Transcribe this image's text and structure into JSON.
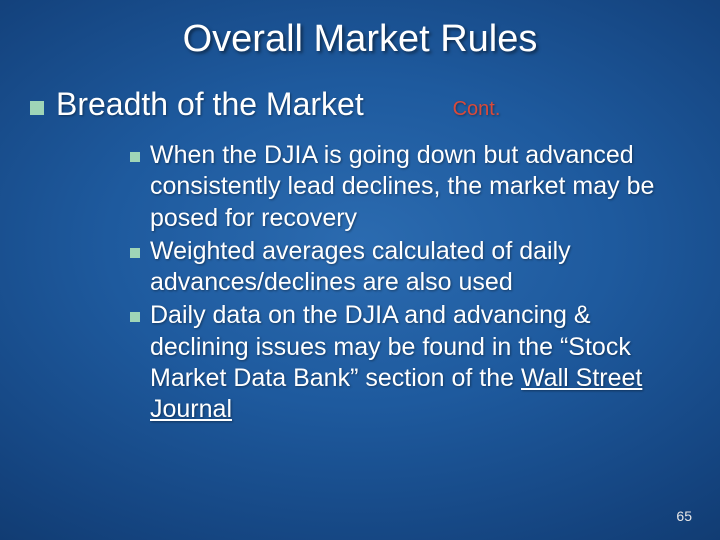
{
  "colors": {
    "bg_center": "#2b6bb0",
    "bg_edge": "#04193c",
    "bullet": "#9fd5b7",
    "text": "#ffffff",
    "cont": "#d94a3a"
  },
  "typography": {
    "title_fontsize": 38,
    "level1_fontsize": 32,
    "level2_fontsize": 25,
    "cont_fontsize": 20,
    "pagenum_fontsize": 14,
    "font_family": "Arial"
  },
  "title": "Overall Market Rules",
  "level1": {
    "text": "Breadth of the Market",
    "cont": "Cont."
  },
  "bullets": [
    {
      "text": " When the DJIA is going down but advanced consistently lead declines, the market may be posed for recovery"
    },
    {
      "text": "Weighted averages calculated of daily advances/declines are also used"
    },
    {
      "text": " Daily data on the DJIA and advancing & declining issues may be found in the “Stock Market Data Bank” section of the ",
      "underlined_suffix": "Wall Street Journal"
    }
  ],
  "page_number": "65"
}
